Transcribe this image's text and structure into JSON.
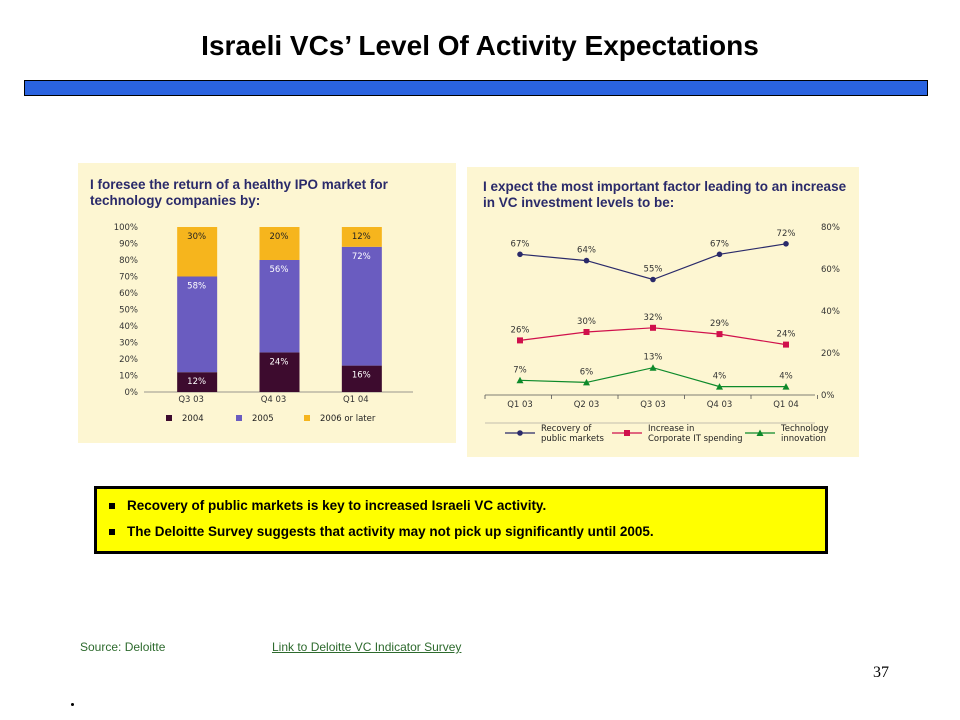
{
  "slide": {
    "title": "Israeli VCs’ Level Of Activity Expectations",
    "page_number": "37",
    "source": "Source: Deloitte",
    "link": "Link to Deloitte VC Indicator Survey",
    "bullets": [
      "Recovery of public markets is key to increased Israeli VC activity.",
      "The Deloitte Survey suggests that activity may not pick up significantly until 2005."
    ]
  },
  "chart_data": [
    {
      "type": "bar",
      "stacked": true,
      "title": "I foresee the return of a healthy IPO market for technology companies by:",
      "title_lines": [
        "I foresee the return of a healthy IPO market for",
        "technology companies by:"
      ],
      "categories": [
        "Q3 03",
        "Q4 03",
        "Q1 04"
      ],
      "series": [
        {
          "name": "2004",
          "values": [
            12,
            24,
            16
          ],
          "labels": [
            "12%",
            "24%",
            "16%"
          ],
          "color": "#3d0b2e"
        },
        {
          "name": "2005",
          "values": [
            58,
            56,
            72
          ],
          "labels": [
            "58%",
            "56%",
            "72%"
          ],
          "color": "#6a5cc0"
        },
        {
          "name": "2006 or later",
          "values": [
            30,
            20,
            12
          ],
          "labels": [
            "30%",
            "20%",
            "12%"
          ],
          "color": "#f6b51d"
        }
      ],
      "ylim": [
        0,
        100
      ],
      "yticks": [
        "0%",
        "10%",
        "20%",
        "30%",
        "40%",
        "50%",
        "60%",
        "70%",
        "80%",
        "90%",
        "100%"
      ],
      "legend_position": "bottom"
    },
    {
      "type": "line",
      "title": "I expect the most important factor leading to an increase in VC investment levels to be:",
      "title_lines": [
        "I expect the most important factor leading to an increase",
        "in VC investment levels to be:"
      ],
      "categories": [
        "Q1 03",
        "Q2 03",
        "Q3 03",
        "Q4 03",
        "Q1 04"
      ],
      "series": [
        {
          "name": "Recovery of public markets",
          "legend_lines": [
            "Recovery of",
            "public markets"
          ],
          "values": [
            67,
            64,
            55,
            67,
            72
          ],
          "labels": [
            "67%",
            "64%",
            "55%",
            "67%",
            "72%"
          ],
          "color": "#2a2a6a",
          "marker": "circle"
        },
        {
          "name": "Increase in Corporate IT spending",
          "legend_lines": [
            "Increase in",
            "Corporate IT spending"
          ],
          "values": [
            26,
            30,
            32,
            29,
            24
          ],
          "labels": [
            "26%",
            "30%",
            "32%",
            "29%",
            "24%"
          ],
          "color": "#d0104c",
          "marker": "square"
        },
        {
          "name": "Technology innovation",
          "legend_lines": [
            "Technology",
            "innovation"
          ],
          "values": [
            7,
            6,
            13,
            4,
            4
          ],
          "labels": [
            "7%",
            "6%",
            "13%",
            "4%",
            "4%"
          ],
          "color": "#0d8a2a",
          "marker": "triangle"
        }
      ],
      "ylim": [
        0,
        80
      ],
      "yticks": [
        "0%",
        "20%",
        "40%",
        "60%",
        "80%"
      ],
      "y_axis_side": "right",
      "legend_position": "bottom"
    }
  ]
}
